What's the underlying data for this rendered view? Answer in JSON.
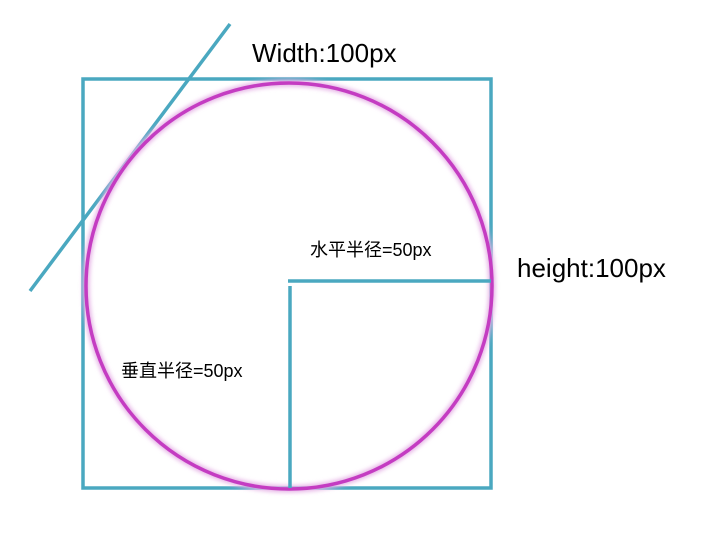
{
  "labels": {
    "width": "Width:100px",
    "height": "height:100px",
    "horizontal_radius": "水平半径=50px",
    "vertical_radius": "垂直半径=50px"
  },
  "colors": {
    "box": "#4aa8c0",
    "circle": "#c43cc2",
    "circle_glow": "#e6b3e6",
    "text": "#000000",
    "background": "#ffffff"
  }
}
